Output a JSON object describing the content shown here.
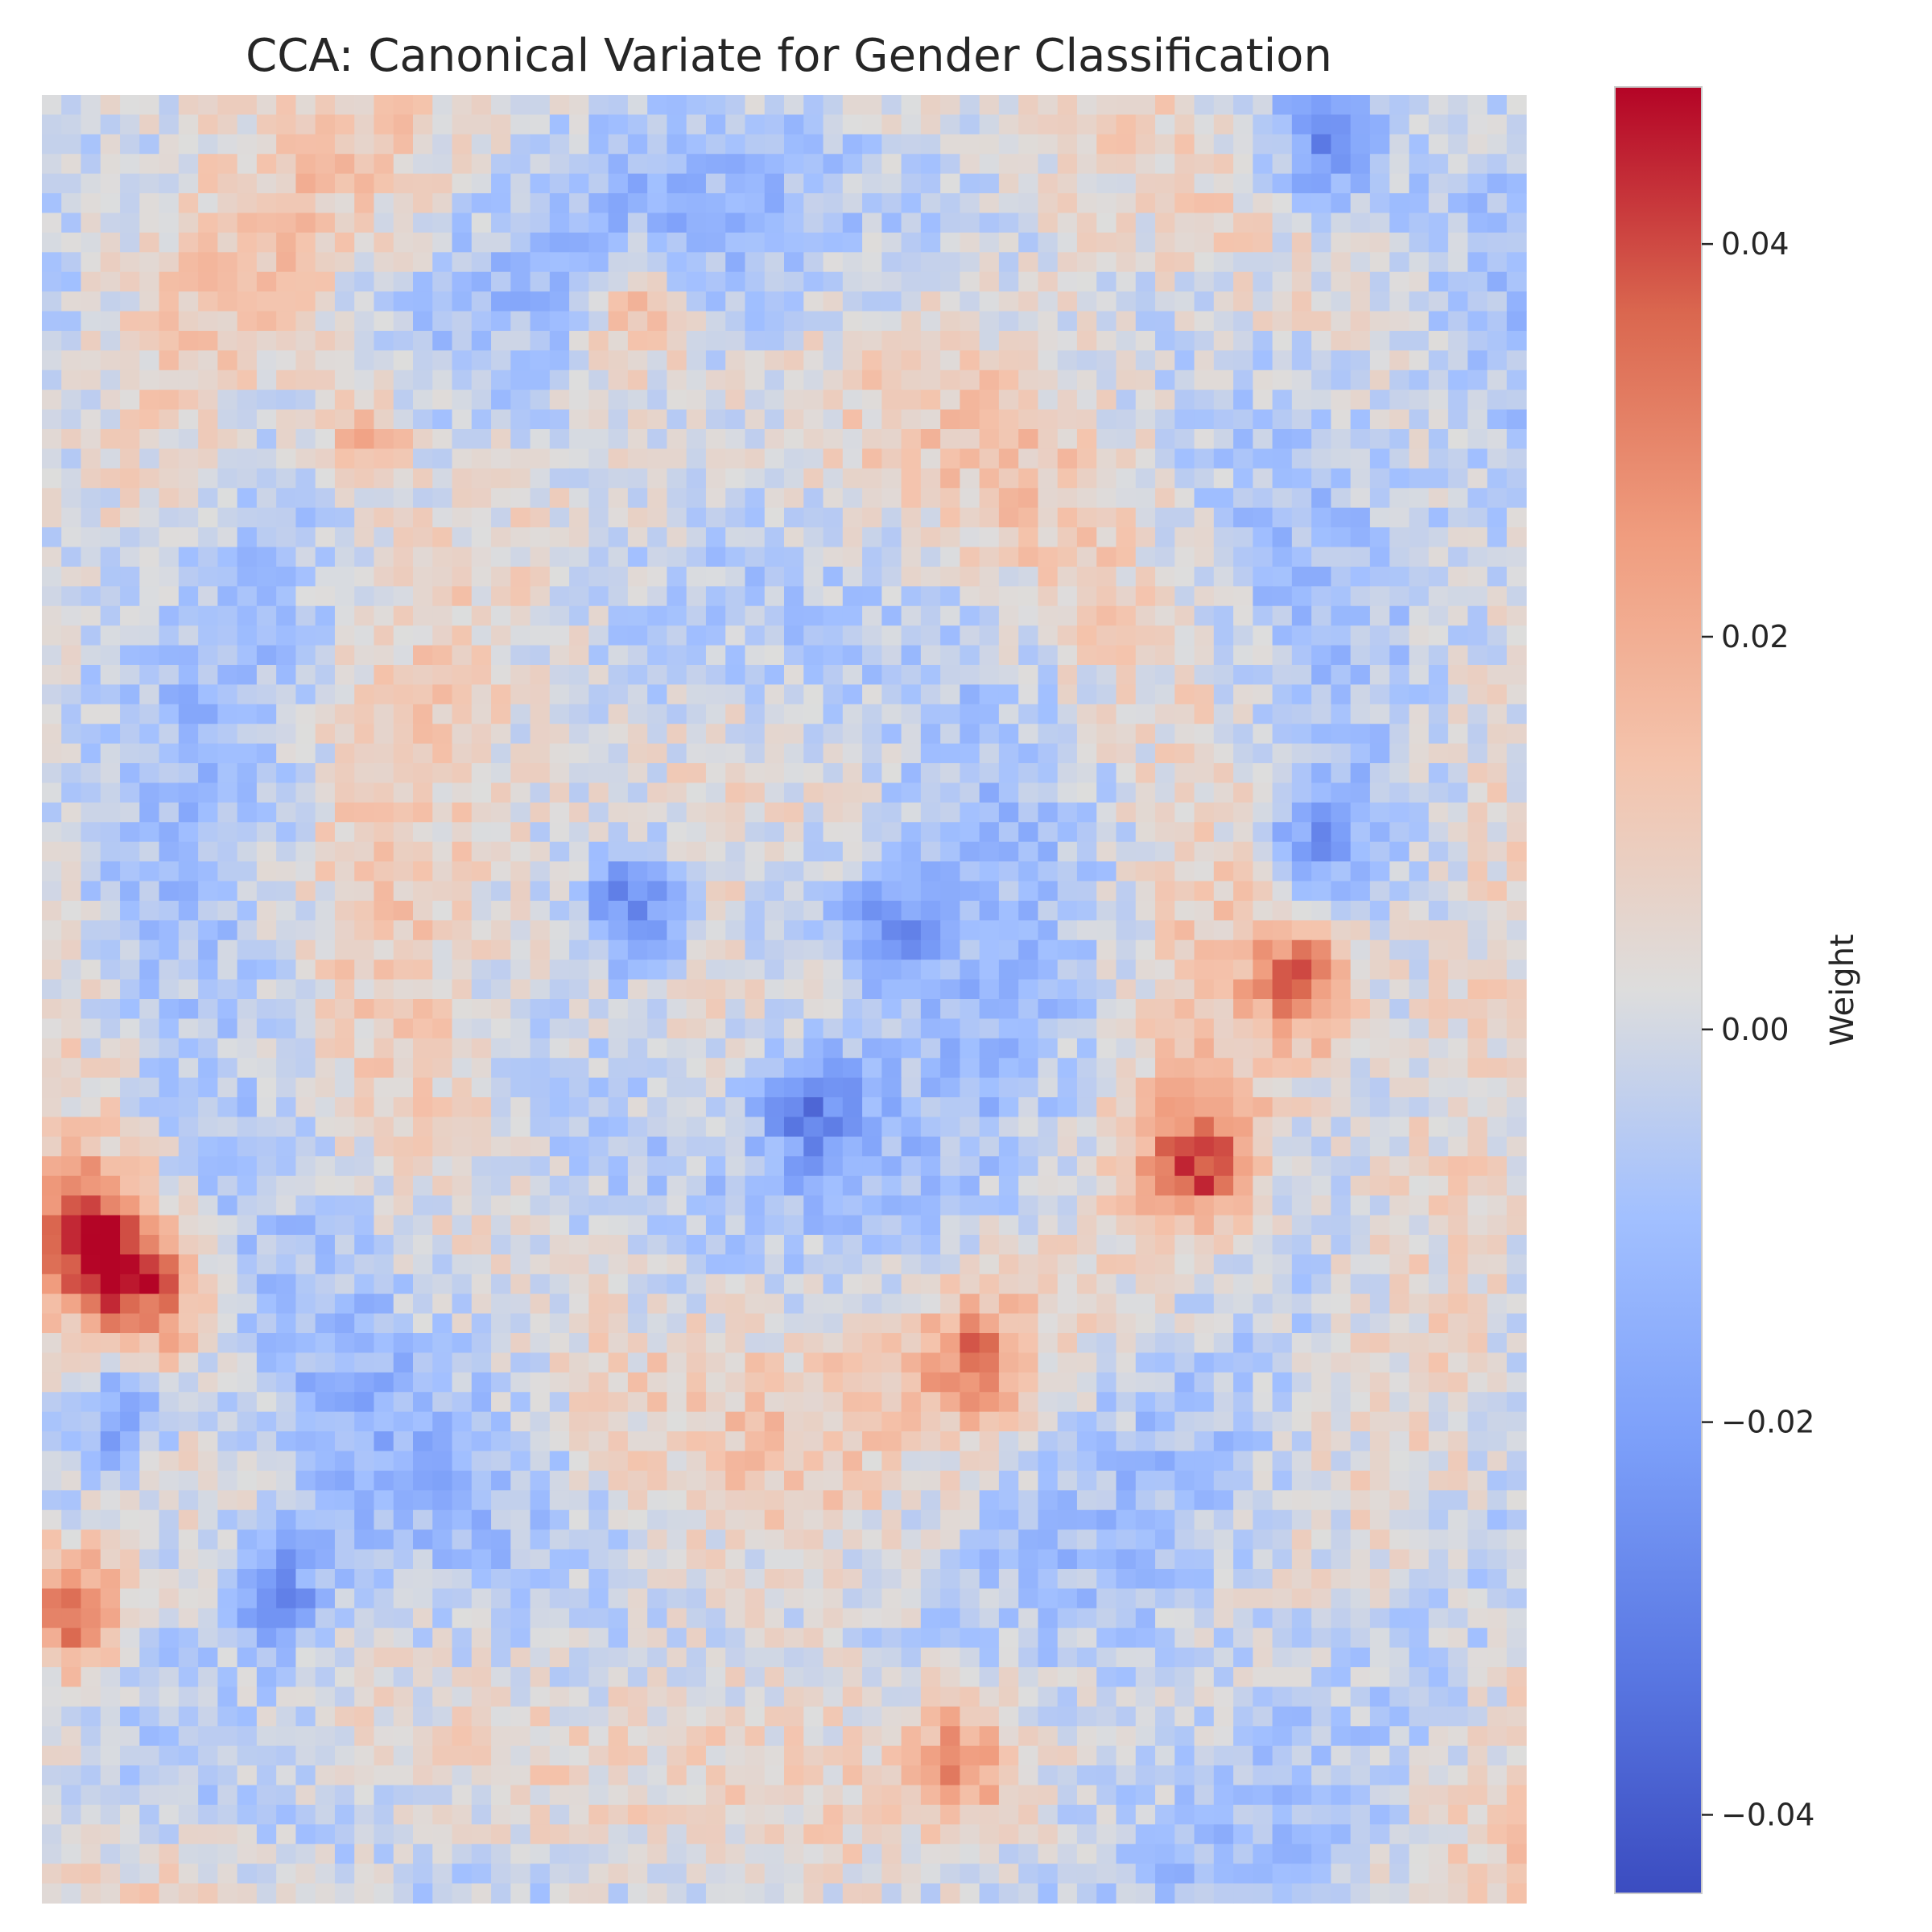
{
  "chart_data": {
    "type": "heatmap",
    "title": "CCA: Canonical Variate for Gender Classification",
    "xlabel": "",
    "ylabel": "",
    "grid": false,
    "colormap": "coolwarm",
    "grid_shape": [
      92,
      76
    ],
    "value_range": [
      -0.044,
      0.048
    ],
    "colorbar": {
      "label": "Weight",
      "ticks": [
        0.04,
        0.02,
        0.0,
        -0.02,
        -0.04
      ],
      "tick_labels": [
        "0.04",
        "0.02",
        "0.00",
        "−0.02",
        "−0.04"
      ],
      "range": [
        -0.044,
        0.048
      ]
    },
    "features": [
      {
        "x": 0.03,
        "y": 0.63,
        "value": 0.045
      },
      {
        "x": 0.02,
        "y": 0.84,
        "value": 0.048
      },
      {
        "x": 0.07,
        "y": 0.66,
        "value": 0.038
      },
      {
        "x": 0.05,
        "y": 0.73,
        "value": -0.03
      },
      {
        "x": 0.16,
        "y": 0.83,
        "value": -0.03
      },
      {
        "x": 0.4,
        "y": 0.45,
        "value": -0.04
      },
      {
        "x": 0.57,
        "y": 0.46,
        "value": -0.028
      },
      {
        "x": 0.52,
        "y": 0.56,
        "value": -0.03
      },
      {
        "x": 0.85,
        "y": 0.49,
        "value": 0.035
      },
      {
        "x": 0.78,
        "y": 0.59,
        "value": 0.04
      },
      {
        "x": 0.63,
        "y": 0.7,
        "value": 0.032
      },
      {
        "x": 0.86,
        "y": 0.41,
        "value": -0.028
      },
      {
        "x": 0.86,
        "y": 0.03,
        "value": -0.03
      },
      {
        "x": 0.4,
        "y": 0.12,
        "value": 0.028
      },
      {
        "x": 0.22,
        "y": 0.19,
        "value": 0.025
      },
      {
        "x": 0.62,
        "y": 0.92,
        "value": 0.028
      }
    ]
  }
}
